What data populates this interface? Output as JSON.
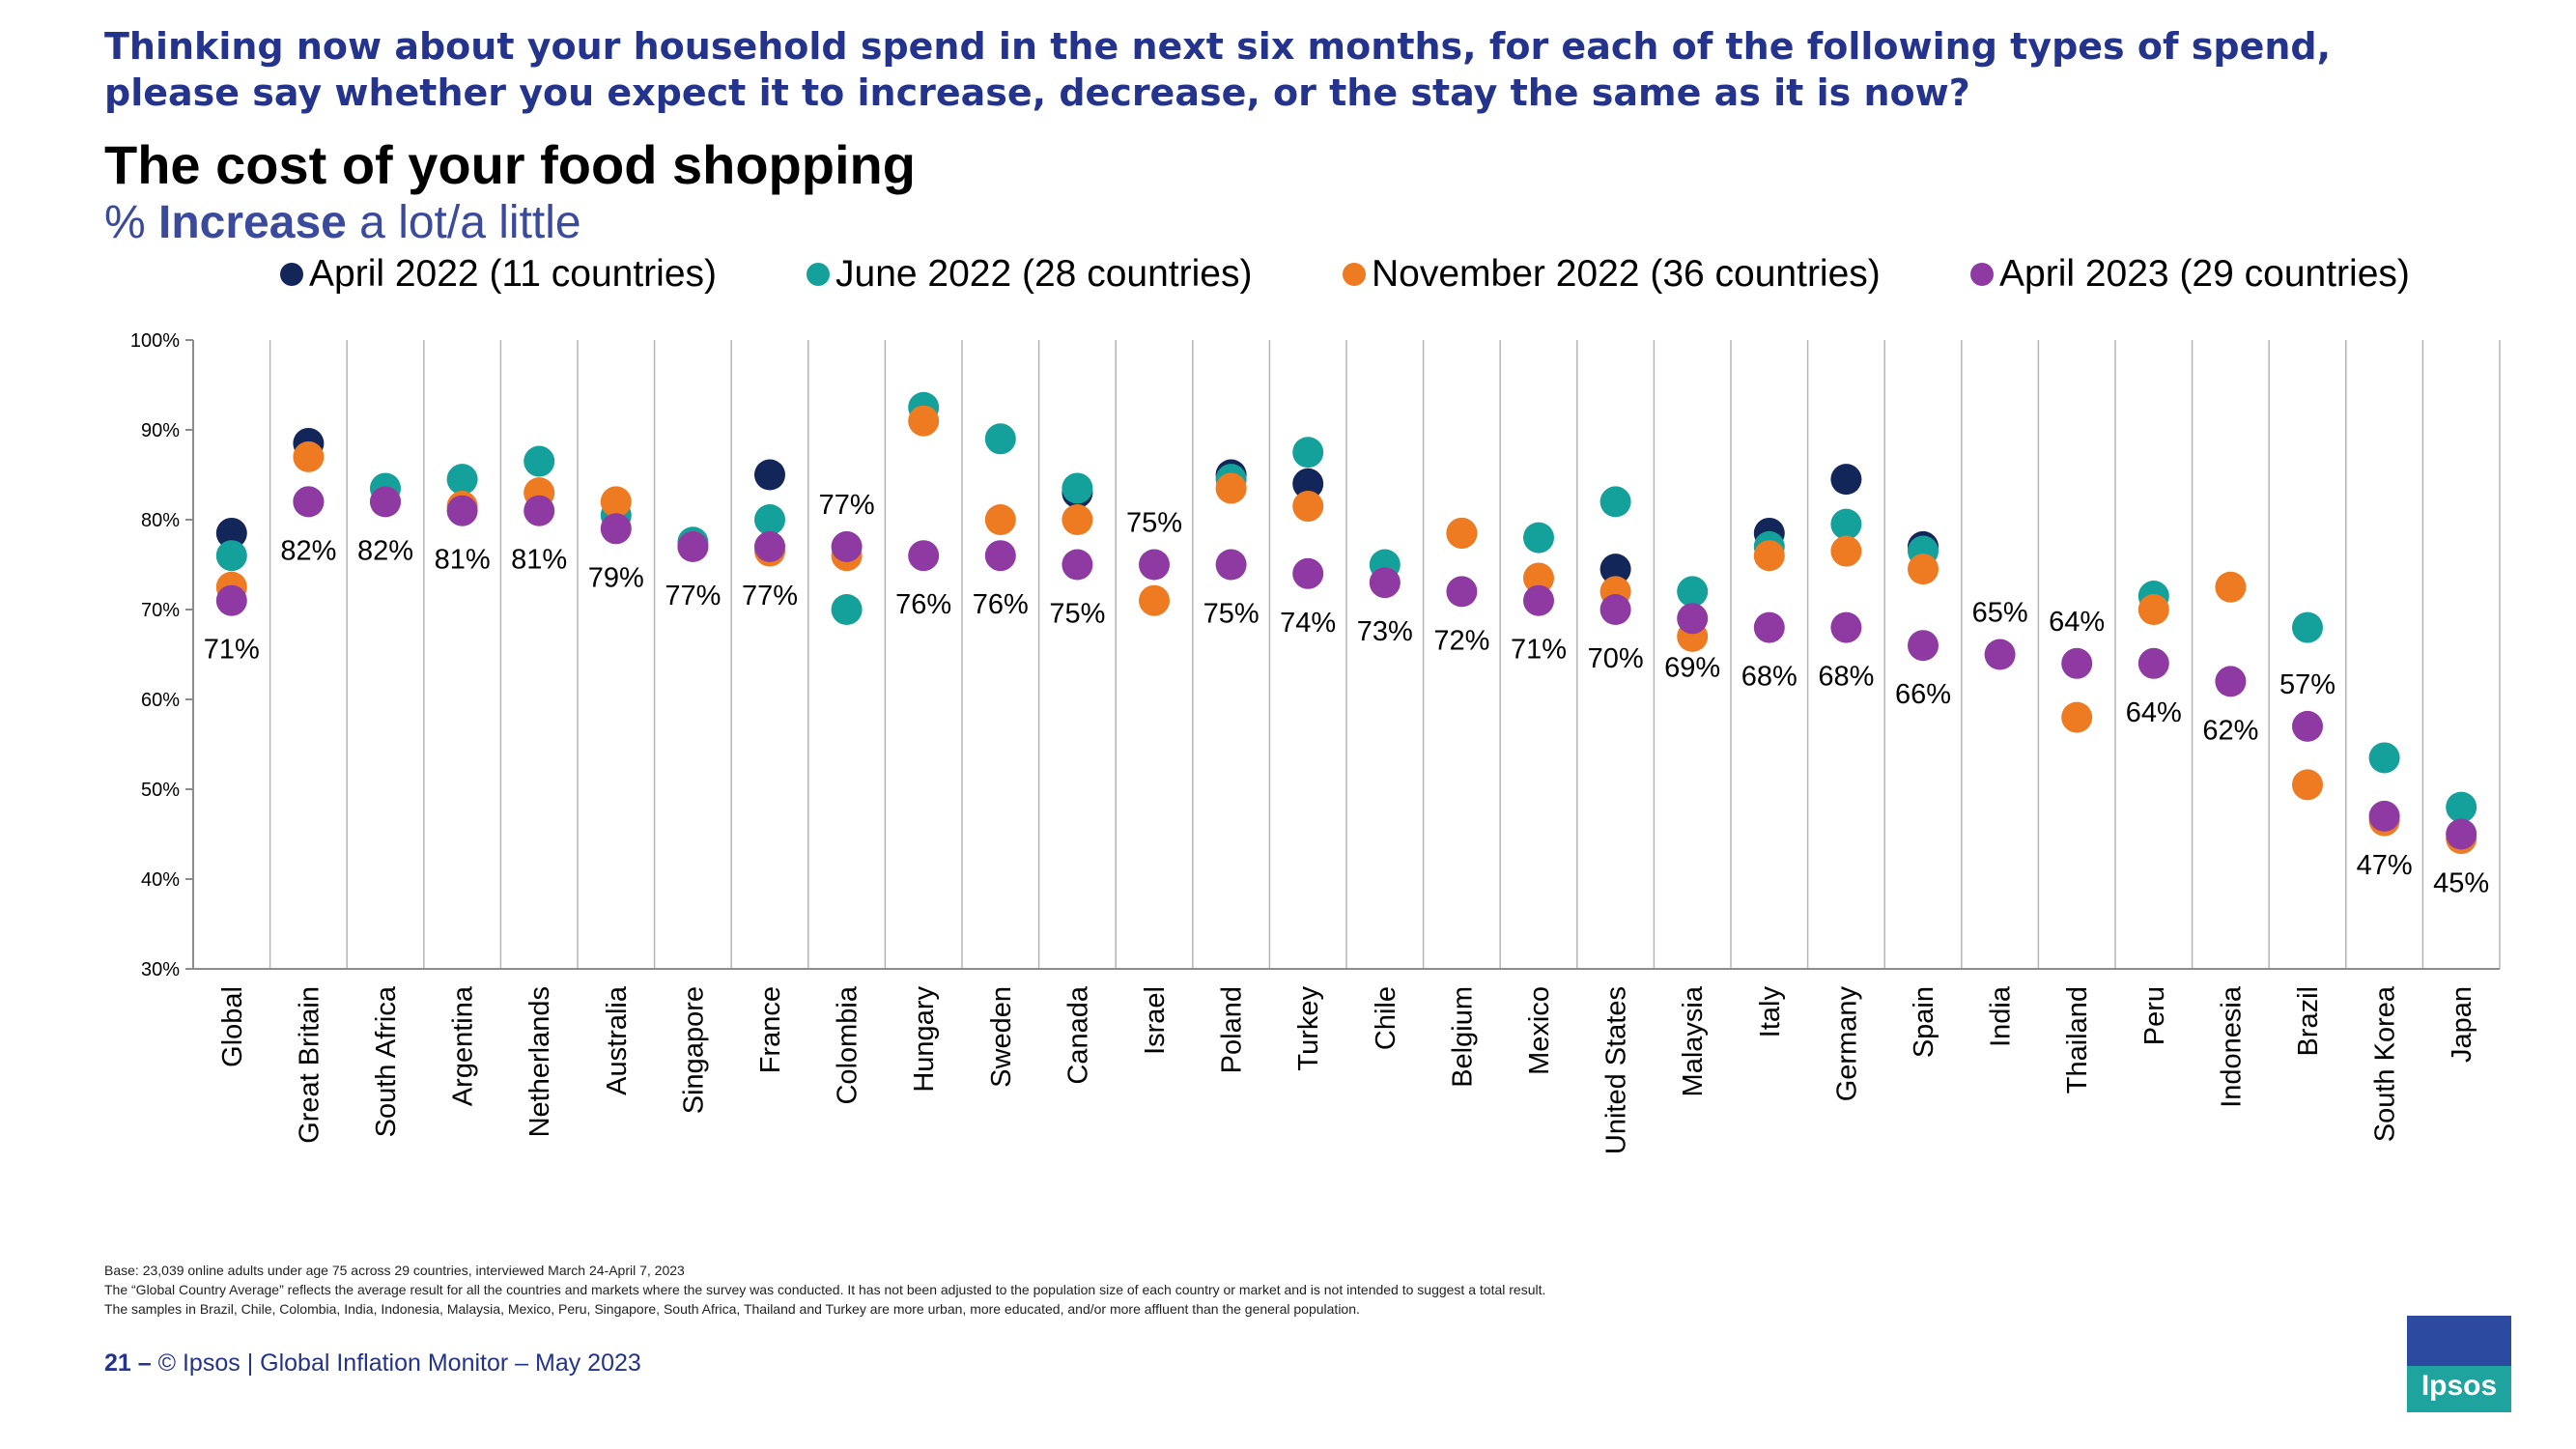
{
  "question": {
    "line1": "Thinking now about your household spend in the next six months, for each of the following types of spend,",
    "line2": "please say whether you expect it to increase, decrease, or the stay the same as it is now?"
  },
  "title": "The cost of your food shopping",
  "subtitle": {
    "prefix": "% ",
    "bold": "Increase",
    "suffix": " a lot/a little"
  },
  "legend": [
    {
      "label": "April 2022 (11 countries)",
      "color": "#13265a"
    },
    {
      "label": "June 2022 (28 countries)",
      "color": "#14a19c"
    },
    {
      "label": "November 2022 (36 countries)",
      "color": "#ee7b21"
    },
    {
      "label": "April 2023 (29 countries)",
      "color": "#8f3aa3"
    }
  ],
  "chart_data": {
    "type": "scatter",
    "title": "The cost of your food shopping",
    "ylabel": "% Increase a lot/a little",
    "ylim": [
      30,
      100
    ],
    "yticks": [
      "30%",
      "40%",
      "50%",
      "60%",
      "70%",
      "80%",
      "90%",
      "100%"
    ],
    "categories": [
      "Global",
      "Great Britain",
      "South Africa",
      "Argentina",
      "Netherlands",
      "Australia",
      "Singapore",
      "France",
      "Colombia",
      "Hungary",
      "Sweden",
      "Canada",
      "Israel",
      "Poland",
      "Turkey",
      "Chile",
      "Belgium",
      "Mexico",
      "United States",
      "Malaysia",
      "Italy",
      "Germany",
      "Spain",
      "India",
      "Thailand",
      "Peru",
      "Indonesia",
      "Brazil",
      "South Korea",
      "Japan"
    ],
    "series": [
      {
        "name": "April 2022 (11 countries)",
        "color": "#13265a",
        "values": [
          78.5,
          88.5,
          null,
          null,
          null,
          null,
          null,
          85,
          null,
          null,
          null,
          83,
          null,
          85,
          84,
          null,
          null,
          null,
          74.5,
          null,
          78.5,
          84.5,
          77,
          null,
          null,
          null,
          null,
          null,
          null,
          null
        ]
      },
      {
        "name": "June 2022 (28 countries)",
        "color": "#14a19c",
        "values": [
          76,
          82,
          83.5,
          84.5,
          86.5,
          80.5,
          77.5,
          80,
          70,
          92.5,
          89,
          83.5,
          null,
          84.5,
          87.5,
          75,
          78.5,
          78,
          82,
          72,
          77,
          79.5,
          76.5,
          null,
          null,
          71.5,
          null,
          68,
          53.5,
          48
        ]
      },
      {
        "name": "November 2022 (36 countries)",
        "color": "#ee7b21",
        "values": [
          72.5,
          87,
          82,
          81.5,
          83,
          82,
          77,
          76.5,
          76,
          91,
          80,
          80,
          71,
          83.5,
          81.5,
          73,
          78.5,
          73.5,
          72,
          67,
          76,
          76.5,
          74.5,
          null,
          58,
          70,
          72.5,
          50.5,
          46.5,
          44.5
        ]
      },
      {
        "name": "April 2023 (29 countries)",
        "color": "#8f3aa3",
        "values": [
          71,
          82,
          82,
          81,
          81,
          79,
          77,
          77,
          77,
          76,
          76,
          75,
          75,
          75,
          74,
          73,
          72,
          71,
          70,
          69,
          68,
          68,
          66,
          65,
          64,
          64,
          62,
          57,
          47,
          45
        ]
      }
    ],
    "data_labels": [
      "71%",
      "82%",
      "82%",
      "81%",
      "81%",
      "79%",
      "77%",
      "77%",
      "77%",
      "76%",
      "76%",
      "75%",
      "75%",
      "75%",
      "74%",
      "73%",
      "72%",
      "71%",
      "70%",
      "69%",
      "68%",
      "68%",
      "66%",
      "65%",
      "64%",
      "64%",
      "62%",
      "57%",
      "47%",
      "45%"
    ],
    "label_position": [
      "below",
      "below",
      "below",
      "below",
      "below",
      "below",
      "below",
      "below",
      "above",
      "below",
      "below",
      "below",
      "above",
      "below",
      "below",
      "below",
      "below",
      "below",
      "below",
      "below",
      "below",
      "below",
      "below",
      "above",
      "above",
      "below",
      "below",
      "above",
      "below",
      "below"
    ]
  },
  "notes": [
    "Base: 23,039 online adults under age 75 across 29 countries, interviewed March 24-April 7, 2023",
    "The “Global Country Average” reflects the average result for all the countries and markets where the survey was conducted. It has not been adjusted to the population size of each country or market and is not intended to suggest a total result.",
    "The samples in Brazil, Chile, Colombia, India, Indonesia, Malaysia, Mexico, Peru, Singapore, South Africa, Thailand and Turkey are more urban, more educated, and/or more affluent than the general population."
  ],
  "footer": {
    "page": "21 –",
    "text": "© Ipsos | Global Inflation Monitor – May 2023"
  },
  "logo": {
    "text": "Ipsos"
  }
}
